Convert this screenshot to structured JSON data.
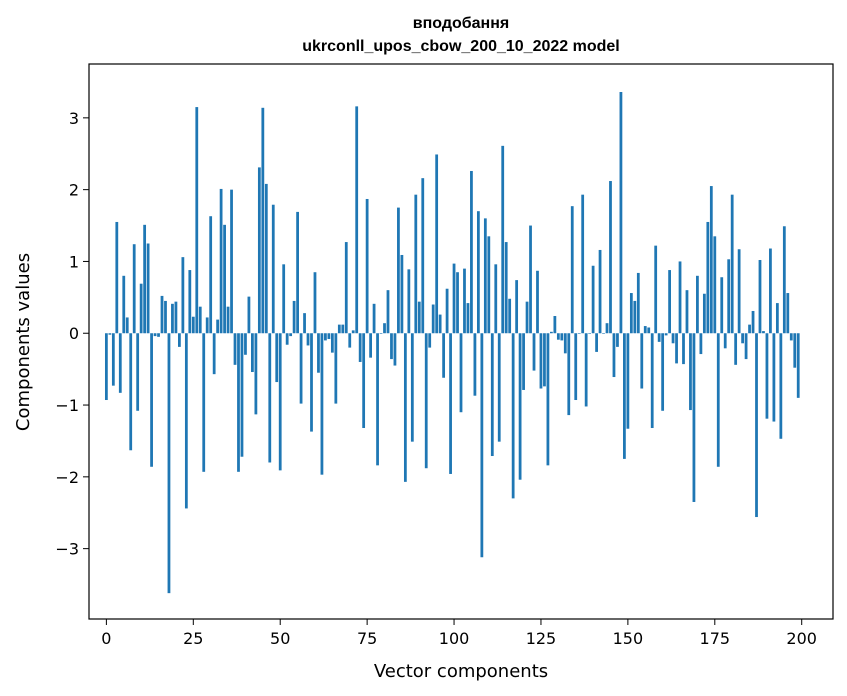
{
  "chart_data": {
    "type": "bar",
    "title": "вподобання",
    "subtitle": "ukrconll_upos_cbow_200_10_2022 model",
    "xlabel": "Vector components",
    "ylabel": "Components values",
    "xlim": [
      -5,
      209
    ],
    "ylim": [
      -3.98,
      3.75
    ],
    "xticks": [
      0,
      25,
      50,
      75,
      100,
      125,
      150,
      175,
      200
    ],
    "xtick_labels": [
      "0",
      "25",
      "50",
      "75",
      "100",
      "125",
      "150",
      "175",
      "200"
    ],
    "yticks": [
      -3,
      -2,
      -1,
      0,
      1,
      2,
      3
    ],
    "ytick_labels": [
      "−3",
      "−2",
      "−1",
      "0",
      "1",
      "2",
      "3"
    ],
    "grid": false,
    "bar_color": "#1f77b4",
    "x": [
      0,
      1,
      2,
      3,
      4,
      5,
      6,
      7,
      8,
      9,
      10,
      11,
      12,
      13,
      14,
      15,
      16,
      17,
      18,
      19,
      20,
      21,
      22,
      23,
      24,
      25,
      26,
      27,
      28,
      29,
      30,
      31,
      32,
      33,
      34,
      35,
      36,
      37,
      38,
      39,
      40,
      41,
      42,
      43,
      44,
      45,
      46,
      47,
      48,
      49,
      50,
      51,
      52,
      53,
      54,
      55,
      56,
      57,
      58,
      59,
      60,
      61,
      62,
      63,
      64,
      65,
      66,
      67,
      68,
      69,
      70,
      71,
      72,
      73,
      74,
      75,
      76,
      77,
      78,
      79,
      80,
      81,
      82,
      83,
      84,
      85,
      86,
      87,
      88,
      89,
      90,
      91,
      92,
      93,
      94,
      95,
      96,
      97,
      98,
      99,
      100,
      101,
      102,
      103,
      104,
      105,
      106,
      107,
      108,
      109,
      110,
      111,
      112,
      113,
      114,
      115,
      116,
      117,
      118,
      119,
      120,
      121,
      122,
      123,
      124,
      125,
      126,
      127,
      128,
      129,
      130,
      131,
      132,
      133,
      134,
      135,
      136,
      137,
      138,
      139,
      140,
      141,
      142,
      143,
      144,
      145,
      146,
      147,
      148,
      149,
      150,
      151,
      152,
      153,
      154,
      155,
      156,
      157,
      158,
      159,
      160,
      161,
      162,
      163,
      164,
      165,
      166,
      167,
      168,
      169,
      170,
      171,
      172,
      173,
      174,
      175,
      176,
      177,
      178,
      179,
      180,
      181,
      182,
      183,
      184,
      185,
      186,
      187,
      188,
      189,
      190,
      191,
      192,
      193,
      194,
      195,
      196,
      197,
      198,
      199
    ],
    "values": [
      -0.93,
      -0.02,
      -0.73,
      1.55,
      -0.83,
      0.8,
      0.22,
      -1.63,
      1.24,
      -1.08,
      0.69,
      1.51,
      1.25,
      -1.86,
      -0.04,
      -0.05,
      0.52,
      0.45,
      -3.62,
      0.41,
      0.44,
      -0.19,
      1.06,
      -2.44,
      0.88,
      0.23,
      3.15,
      0.37,
      -1.93,
      0.22,
      1.63,
      -0.57,
      0.19,
      2.01,
      1.51,
      0.37,
      2.0,
      -0.44,
      -1.93,
      -1.72,
      -0.3,
      0.51,
      -0.54,
      -1.13,
      2.31,
      3.14,
      2.08,
      -1.8,
      1.79,
      -0.68,
      -1.91,
      0.96,
      -0.16,
      -0.04,
      0.45,
      1.69,
      -0.98,
      0.28,
      -0.17,
      -1.37,
      0.85,
      -0.55,
      -1.97,
      -0.1,
      -0.08,
      -0.27,
      -0.98,
      0.12,
      0.12,
      1.27,
      -0.2,
      0.04,
      3.16,
      -0.4,
      -1.32,
      1.87,
      -0.34,
      0.41,
      -1.84,
      0.0,
      0.14,
      0.6,
      -0.36,
      -0.45,
      1.75,
      1.09,
      -2.07,
      0.89,
      -1.51,
      1.93,
      0.44,
      2.16,
      -1.88,
      -0.2,
      0.4,
      2.49,
      0.26,
      -0.62,
      0.62,
      -1.96,
      0.97,
      0.85,
      -1.1,
      0.9,
      0.42,
      2.26,
      -0.87,
      1.7,
      -3.12,
      1.6,
      1.35,
      -1.71,
      0.96,
      -1.51,
      2.61,
      1.27,
      0.48,
      -2.3,
      0.74,
      -2.04,
      -0.79,
      0.44,
      1.5,
      -0.52,
      0.87,
      -0.77,
      -0.74,
      -1.84,
      0.02,
      0.24,
      -0.09,
      -0.1,
      -0.28,
      -1.14,
      1.77,
      -0.93,
      0.0,
      1.93,
      -1.02,
      0.0,
      0.94,
      -0.26,
      1.16,
      0.0,
      0.14,
      2.12,
      -0.61,
      -0.19,
      3.36,
      -1.75,
      -1.33,
      0.56,
      0.45,
      0.84,
      -0.77,
      0.1,
      0.08,
      -1.32,
      1.22,
      -0.12,
      -1.08,
      -0.03,
      0.88,
      -0.14,
      -0.42,
      1.0,
      -0.43,
      0.6,
      -1.07,
      -2.35,
      0.8,
      -0.29,
      0.55,
      1.55,
      2.05,
      1.35,
      -1.86,
      0.78,
      -0.21,
      1.03,
      1.93,
      -0.44,
      1.17,
      -0.14,
      -0.36,
      0.12,
      0.31,
      -2.56,
      1.02,
      0.03,
      -1.19,
      1.18,
      -1.23,
      0.42,
      -1.47,
      1.49,
      0.56,
      -0.1,
      -0.48,
      -0.9
    ]
  }
}
